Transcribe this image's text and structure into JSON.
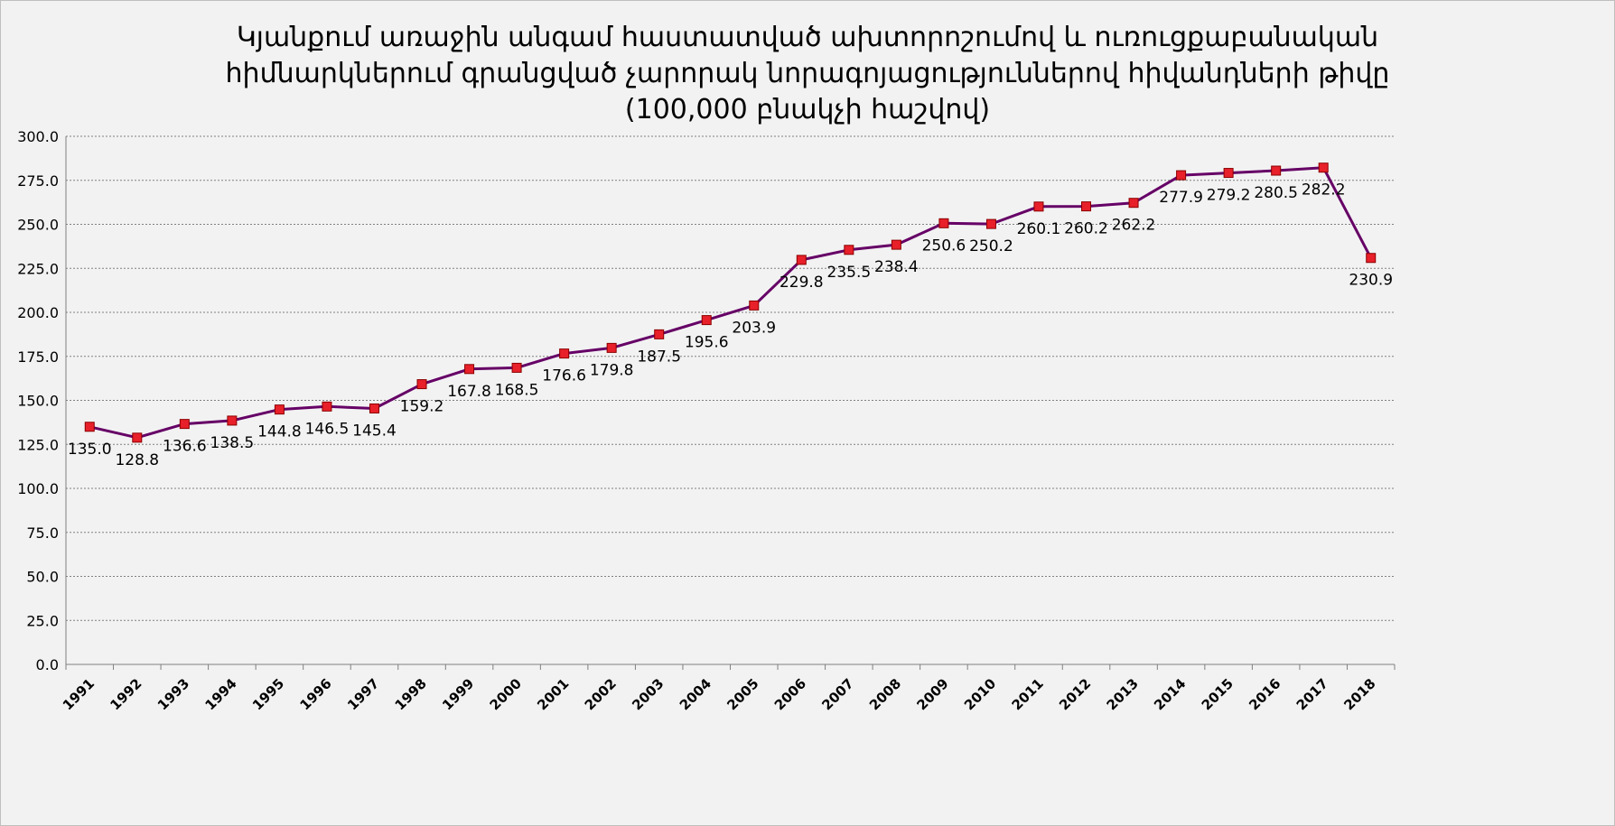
{
  "chart_data": {
    "type": "line",
    "title_lines": [
      "Կյանքում առաջին անգամ հաստատված ախտորոշումով և ուռուցքաբանական",
      "հիմնարկներում գրանցված չարորակ նորագոյացություններով հիվանդների թիվը",
      "(100,000 բնակչի հաշվով)"
    ],
    "xlabel": "",
    "ylabel": "",
    "ylim": [
      0,
      300
    ],
    "ytick_step": 25,
    "ytick_labels": [
      "0.0",
      "25.0",
      "50.0",
      "75.0",
      "100.0",
      "125.0",
      "150.0",
      "175.0",
      "200.0",
      "225.0",
      "250.0",
      "275.0",
      "300.0"
    ],
    "grid": true,
    "legend": "none",
    "categories": [
      "1991",
      "1992",
      "1993",
      "1994",
      "1995",
      "1996",
      "1997",
      "1998",
      "1999",
      "2000",
      "2001",
      "2002",
      "2003",
      "2004",
      "2005",
      "2006",
      "2007",
      "2008",
      "2009",
      "2010",
      "2011",
      "2012",
      "2013",
      "2014",
      "2015",
      "2016",
      "2017",
      "2018"
    ],
    "series": [
      {
        "values": [
          135.0,
          128.8,
          136.6,
          138.5,
          144.8,
          146.5,
          145.4,
          159.2,
          167.8,
          168.5,
          176.6,
          179.8,
          187.5,
          195.6,
          203.9,
          229.8,
          235.5,
          238.4,
          250.6,
          250.2,
          260.1,
          260.2,
          262.2,
          277.9,
          279.2,
          280.5,
          282.2,
          230.9
        ],
        "data_labels": [
          "135.0",
          "128.8",
          "136.6",
          "138.5",
          "144.8",
          "146.5",
          "145.4",
          "159.2",
          "167.8",
          "168.5",
          "176.6",
          "179.8",
          "187.5",
          "195.6",
          "203.9",
          "229.8",
          "235.5",
          "238.4",
          "250.6",
          "250.2",
          "260.1",
          "260.2",
          "262.2",
          "277.9",
          "279.2",
          "280.5",
          "282.2",
          "230.9"
        ],
        "line_color": "#660066",
        "marker_color": "#e8202a",
        "marker_edge_color": "#8b0000",
        "marker": "square"
      }
    ]
  }
}
